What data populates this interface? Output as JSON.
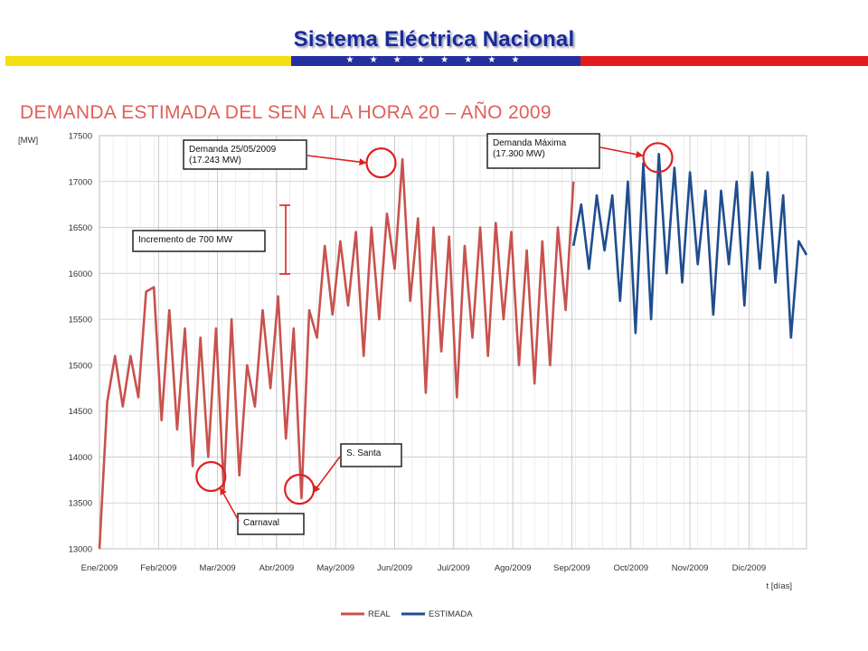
{
  "header": {
    "title": "Sistema Eléctrica Nacional",
    "stars": "★ ★ ★ ★ ★ ★ ★ ★"
  },
  "colors": {
    "header_text": "#1a2a9c",
    "flag_yellow": "#f3df12",
    "flag_blue": "#24309e",
    "flag_red": "#e21c1c",
    "real": "#c8524e",
    "estimada": "#1f4d8e",
    "annotation": "#e02020"
  },
  "chart_data": {
    "type": "line",
    "title": "DEMANDA ESTIMADA DEL SEN A LA HORA 20 – AÑO 2009",
    "ylabel": "[MW]",
    "xlabel": "t [días]",
    "ylim": [
      13000,
      17500
    ],
    "y_ticks": [
      13000,
      13500,
      14000,
      14500,
      15000,
      15500,
      16000,
      16500,
      17000,
      17500
    ],
    "x_ticks": [
      "Ene/2009",
      "Feb/2009",
      "Mar/2009",
      "Abr/2009",
      "May/2009",
      "Jun/2009",
      "Jul/2009",
      "Ago/2009",
      "Sep/2009",
      "Oct/2009",
      "Nov/2009",
      "Dic/2009"
    ],
    "grid": true,
    "legend_position": "bottom",
    "series": [
      {
        "name": "REAL",
        "x": [
          0,
          4,
          8,
          12,
          16,
          20,
          24,
          28,
          32,
          36,
          40,
          44,
          48,
          52,
          56,
          60,
          64,
          68,
          72,
          76,
          80,
          84,
          88,
          92,
          96,
          100,
          104,
          108,
          112,
          116,
          120,
          124,
          128,
          132,
          136,
          140,
          144,
          148,
          152,
          156,
          160,
          164,
          168,
          172,
          176,
          180,
          184,
          188,
          192,
          196,
          200,
          204,
          208,
          212,
          216,
          220,
          224,
          228,
          232,
          236,
          240,
          244
        ],
        "values": [
          13000,
          14600,
          15100,
          14550,
          15100,
          14650,
          15800,
          15850,
          14400,
          15600,
          14300,
          15400,
          13900,
          15300,
          14000,
          15400,
          13650,
          15500,
          13800,
          15000,
          14550,
          15600,
          14750,
          15750,
          14200,
          15400,
          13550,
          15600,
          15300,
          16300,
          15550,
          16350,
          15650,
          16450,
          15100,
          16500,
          15500,
          16650,
          16050,
          17243,
          15700,
          16600,
          14700,
          16500,
          15150,
          16400,
          14650,
          16300,
          15300,
          16500,
          15100,
          16550,
          15500,
          16450,
          15000,
          16250,
          14800,
          16350,
          15000,
          16500,
          15600,
          17000
        ]
      },
      {
        "name": "ESTIMADA",
        "x": [
          244,
          248,
          252,
          256,
          260,
          264,
          268,
          272,
          276,
          280,
          284,
          288,
          292,
          296,
          300,
          304,
          308,
          312,
          316,
          320,
          324,
          328,
          332,
          336,
          340,
          344,
          348,
          352,
          356,
          360,
          364
        ],
        "values": [
          16300,
          16750,
          16050,
          16850,
          16250,
          16850,
          15700,
          17000,
          15350,
          17200,
          15500,
          17300,
          16000,
          17150,
          15900,
          17100,
          16100,
          16900,
          15550,
          16900,
          16100,
          17000,
          15650,
          17100,
          16050,
          17100,
          15900,
          16850,
          15300,
          16350,
          16200
        ]
      }
    ],
    "annotations": [
      {
        "label": "Demanda 25/05/2009\n(17.243 MW)",
        "x": 145,
        "y": 17243
      },
      {
        "label": "Demanda Máxima\n(17.300 MW)",
        "x": 287,
        "y": 17300
      },
      {
        "label": "Incremento de 700 MW"
      },
      {
        "label": "S. Santa",
        "x": 102,
        "y": 13550
      },
      {
        "label": "Carnaval",
        "x": 56,
        "y": 13650
      }
    ]
  }
}
